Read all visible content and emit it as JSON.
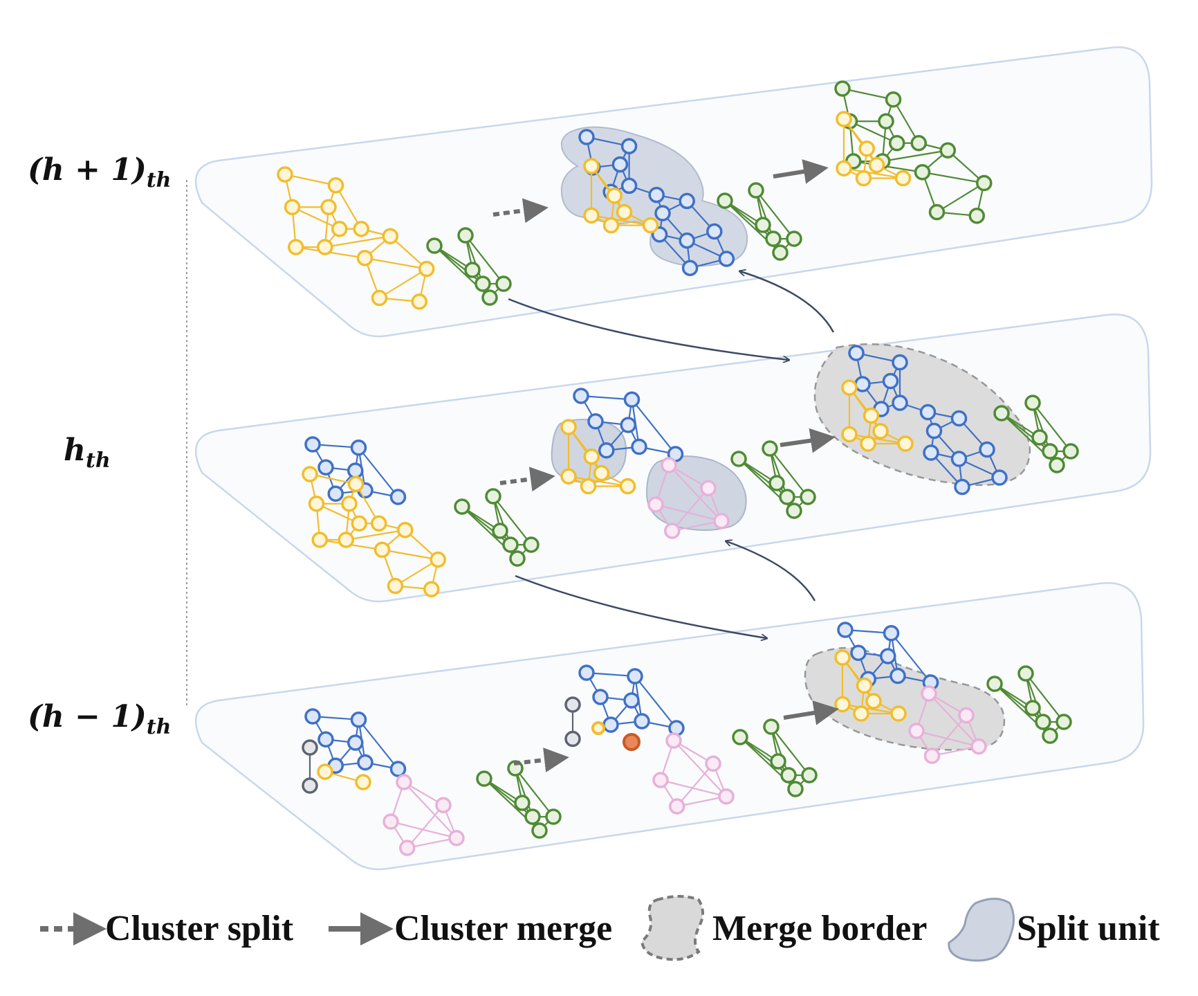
{
  "levels": [
    {
      "id": "upper",
      "var": "h",
      "op": "+",
      "num": "1",
      "sub": "th"
    },
    {
      "id": "middle",
      "var": "h",
      "op": "",
      "num": "",
      "sub": "th"
    },
    {
      "id": "lower",
      "var": "h",
      "op": "−",
      "num": "1",
      "sub": "th"
    }
  ],
  "legend": {
    "split": "Cluster split",
    "merge": "Cluster merge",
    "border": "Merge border",
    "unit": "Split unit"
  },
  "colors": {
    "yellow": "#f2bd2a",
    "blue": "#3f70c6",
    "green": "#4f8a35",
    "pink": "#e6b1d8",
    "gray_node": "#5d6470",
    "red_node": "#c95a24",
    "panel_border": "#c9d7ec",
    "panel_fill": "#fafbfd",
    "split_unit_fill": "#cfd6e2",
    "merge_border_fill": "#d9d9d9",
    "arrow_gray": "#6e6e6e",
    "curve": "#3c4a64"
  }
}
